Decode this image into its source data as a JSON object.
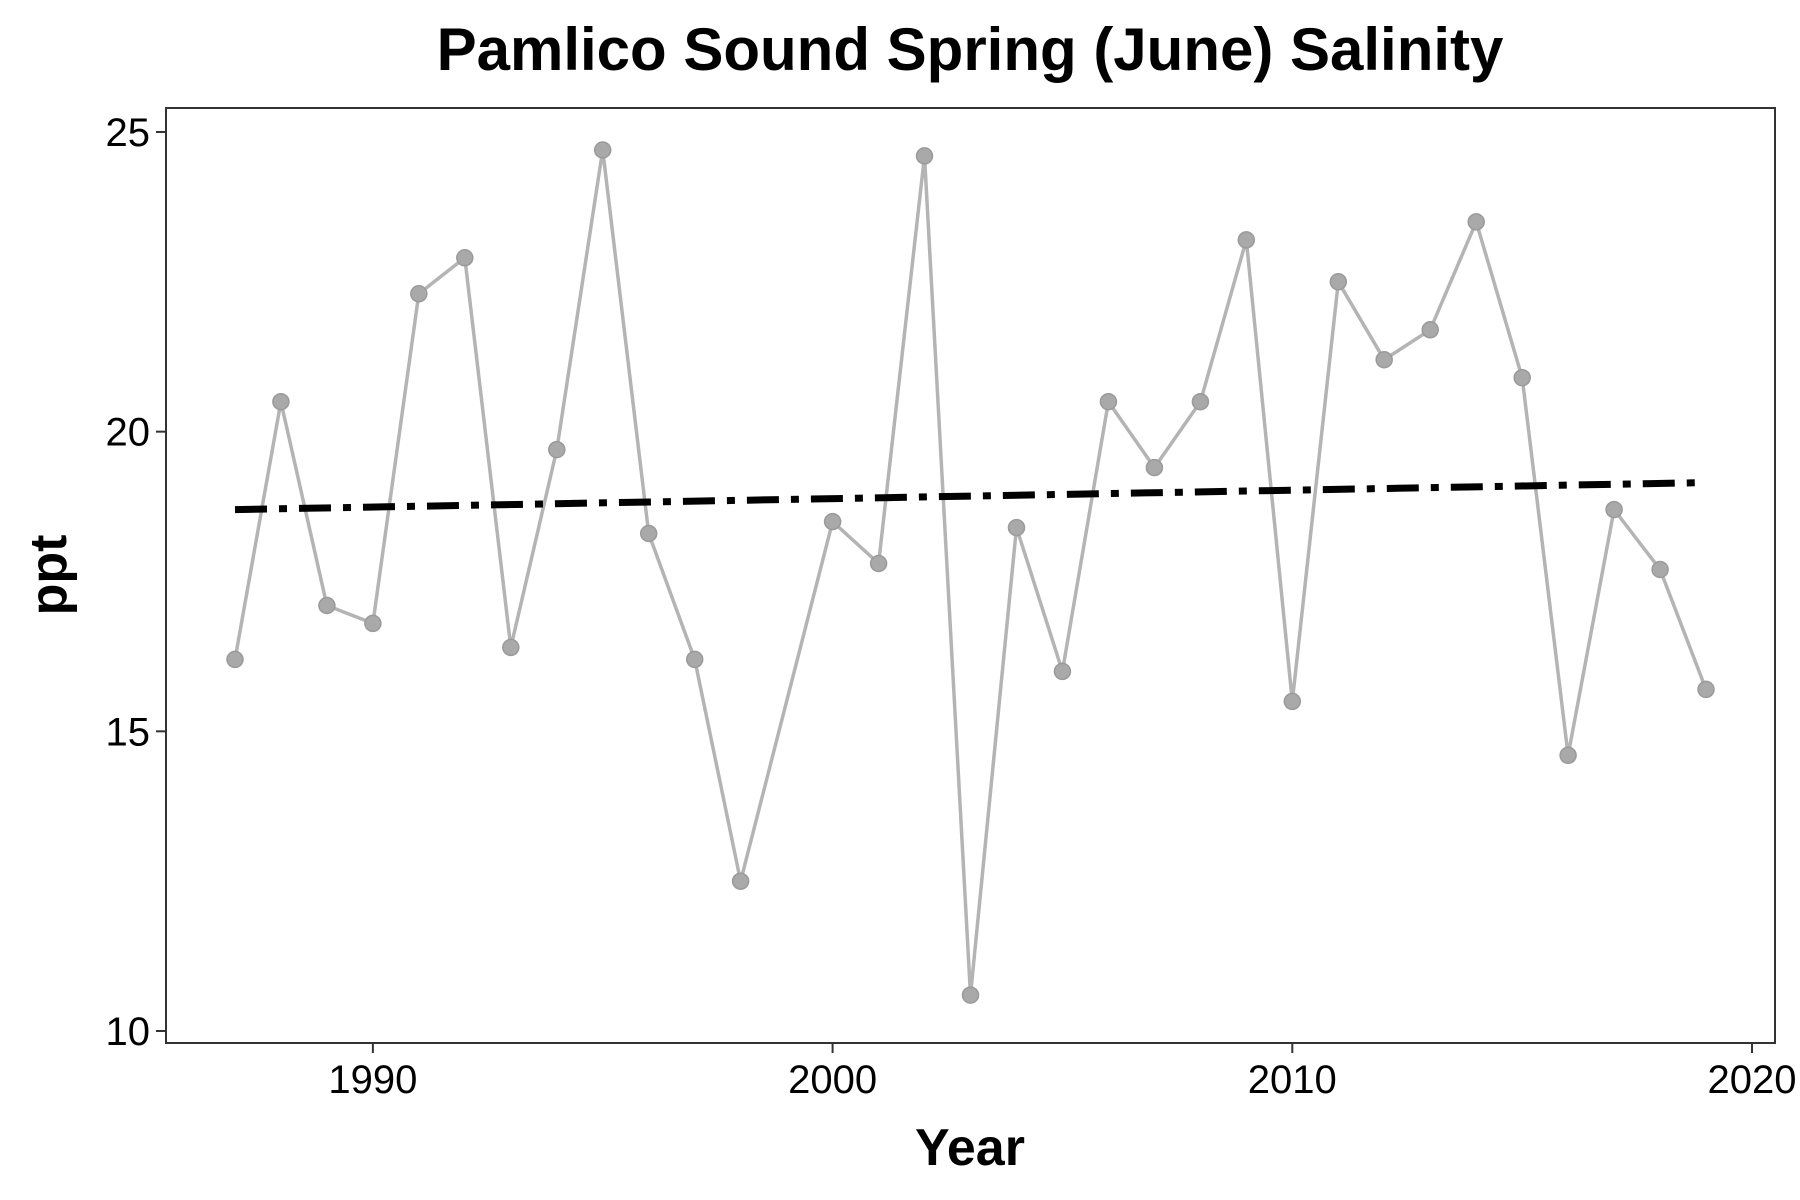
{
  "chart_data": {
    "type": "line",
    "title": "Pamlico Sound Spring (June) Salinity",
    "xlabel": "Year",
    "ylabel": "ppt",
    "xlim": [
      1985.5,
      2020.5
    ],
    "ylim": [
      9.8,
      25.4
    ],
    "x_ticks": [
      1990,
      2000,
      2010,
      2020
    ],
    "y_ticks": [
      10,
      15,
      20,
      25
    ],
    "grid": false,
    "legend": "none",
    "series": [
      {
        "type": "line+points",
        "color": "#b4b4b4",
        "point_color": "#a9a9a9",
        "x": [
          1987,
          1988,
          1989,
          1990,
          1991,
          1992,
          1993,
          1994,
          1995,
          1996,
          1997,
          1998,
          2000,
          2001,
          2002,
          2003,
          2004,
          2005,
          2006,
          2007,
          2008,
          2009,
          2010,
          2011,
          2012,
          2013,
          2014,
          2015,
          2016,
          2017,
          2018,
          2019
        ],
        "y": [
          16.2,
          20.5,
          17.1,
          16.8,
          22.3,
          22.9,
          16.4,
          19.7,
          24.7,
          18.3,
          16.2,
          12.5,
          18.5,
          17.8,
          24.6,
          10.6,
          18.4,
          16.0,
          20.5,
          19.4,
          20.5,
          23.2,
          15.5,
          22.5,
          21.2,
          21.7,
          23.5,
          20.9,
          14.6,
          18.7,
          17.7,
          15.7
        ]
      },
      {
        "type": "trend",
        "style": "dashdot",
        "color": "#000000",
        "x": [
          1987,
          2019
        ],
        "y": [
          18.7,
          19.15
        ]
      }
    ]
  }
}
